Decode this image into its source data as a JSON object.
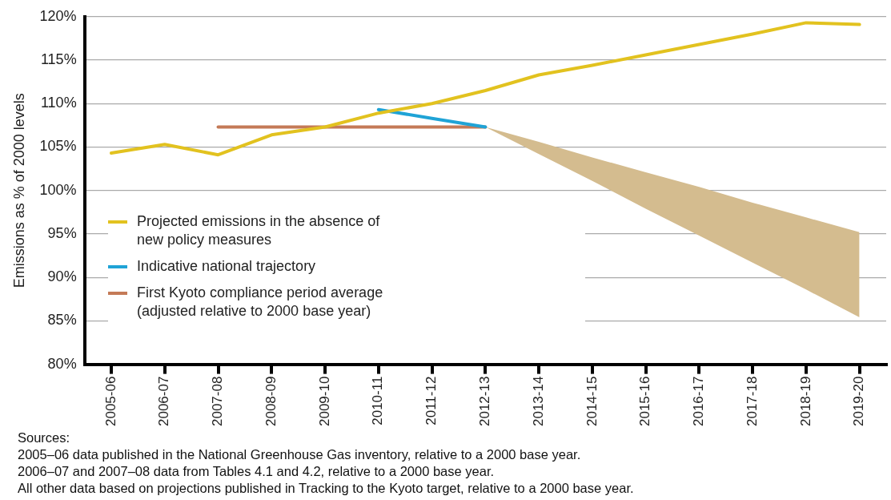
{
  "chart_data": {
    "type": "line",
    "ylabel": "Emissions as % of 2000 levels",
    "categories": [
      "2005-06",
      "2006-07",
      "2007-08",
      "2008-09",
      "2009-10",
      "2010-11",
      "2011-12",
      "2012-13",
      "2013-14",
      "2014-15",
      "2015-16",
      "2016-17",
      "2017-18",
      "2018-19",
      "2019-20"
    ],
    "series": [
      {
        "name": "Projected emissions in the absence of new policy measures",
        "color": "#e2c21f",
        "values": [
          104.3,
          105.3,
          104.1,
          106.4,
          107.3,
          108.9,
          110.0,
          111.5,
          113.3,
          114.4,
          115.6,
          116.8,
          118.0,
          119.3,
          119.1
        ]
      },
      {
        "name": "Indicative national trajectory",
        "color": "#1fa3d6",
        "values": [
          null,
          null,
          null,
          null,
          null,
          109.3,
          108.3,
          107.3,
          null,
          null,
          null,
          null,
          null,
          null,
          null
        ]
      },
      {
        "name": "First Kyoto compliance period average (adjusted relative to 2000 base year)",
        "color": "#c47a57",
        "values": [
          null,
          null,
          107.3,
          107.3,
          107.3,
          107.3,
          107.3,
          107.3,
          null,
          null,
          null,
          null,
          null,
          null,
          null
        ]
      },
      {
        "type": "area",
        "color": "#d4bc8f",
        "values": [
          null,
          null,
          null,
          null,
          null,
          null,
          null,
          null,
          null,
          null,
          null,
          null,
          null,
          null,
          null
        ],
        "lower": [
          null,
          null,
          null,
          null,
          null,
          null,
          null,
          107.3,
          104.2,
          101.1,
          97.9,
          94.8,
          91.7,
          88.6,
          85.4
        ],
        "upper": [
          null,
          null,
          null,
          null,
          null,
          null,
          null,
          107.3,
          105.6,
          103.8,
          102.1,
          100.4,
          98.6,
          96.9,
          95.2
        ]
      }
    ],
    "ylim": [
      80,
      120
    ],
    "yticks": [
      {
        "value": 80,
        "label": "80%"
      },
      {
        "value": 85,
        "label": "85%"
      },
      {
        "value": 90,
        "label": "90%"
      },
      {
        "value": 95,
        "label": "95%"
      },
      {
        "value": 100,
        "label": "100%"
      },
      {
        "value": 105,
        "label": "105%"
      },
      {
        "value": 110,
        "label": "110%"
      },
      {
        "value": 115,
        "label": "115%"
      },
      {
        "value": 120,
        "label": "120%"
      }
    ],
    "grid": "y",
    "legend": "left",
    "marker": "none",
    "line_style": "solid",
    "annotations": [
      "Sources:",
      "2005–06 data published in the National Greenhouse Gas inventory, relative to a 2000 base year.",
      "2006–07 and 2007–08 data from Tables 4.1 and 4.2, relative to a 2000 base year.",
      "All other data based on projections published in Tracking to the Kyoto target, relative to a 2000 base year."
    ]
  }
}
